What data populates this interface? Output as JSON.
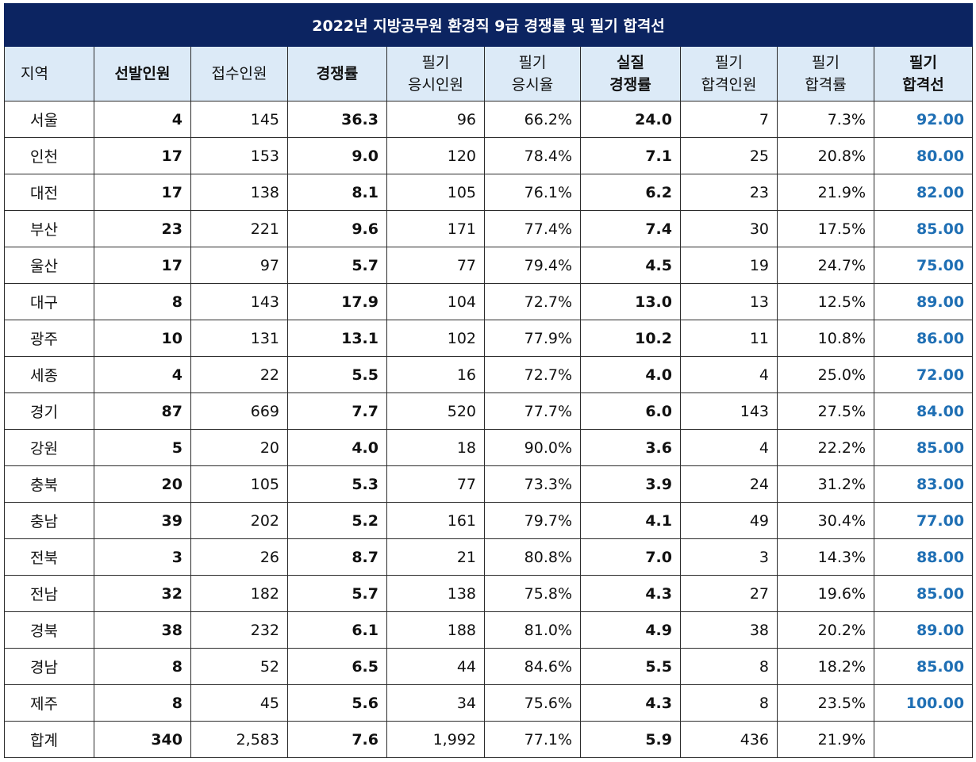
{
  "title": "2022년 지방공무원 환경직 9급 경쟁률 및 필기 합격선",
  "columns": [
    {
      "line1": "지역",
      "line2": "",
      "bold": false
    },
    {
      "line1": "선발인원",
      "line2": "",
      "bold": true
    },
    {
      "line1": "접수인원",
      "line2": "",
      "bold": false
    },
    {
      "line1": "경쟁률",
      "line2": "",
      "bold": true
    },
    {
      "line1": "필기",
      "line2": "응시인원",
      "bold": false
    },
    {
      "line1": "필기",
      "line2": "응시율",
      "bold": false
    },
    {
      "line1": "실질",
      "line2": "경쟁률",
      "bold": true
    },
    {
      "line1": "필기",
      "line2": "합격인원",
      "bold": false
    },
    {
      "line1": "필기",
      "line2": "합격률",
      "bold": false
    },
    {
      "line1": "필기",
      "line2": "합격선",
      "bold": true
    }
  ],
  "rows": [
    {
      "region": "서울",
      "selected": "4",
      "applied": "145",
      "ratio": "36.3",
      "exam_takers": "96",
      "exam_rate": "66.2%",
      "real_ratio": "24.0",
      "passed": "7",
      "pass_rate": "7.3%",
      "cutoff": "92.00"
    },
    {
      "region": "인천",
      "selected": "17",
      "applied": "153",
      "ratio": "9.0",
      "exam_takers": "120",
      "exam_rate": "78.4%",
      "real_ratio": "7.1",
      "passed": "25",
      "pass_rate": "20.8%",
      "cutoff": "80.00"
    },
    {
      "region": "대전",
      "selected": "17",
      "applied": "138",
      "ratio": "8.1",
      "exam_takers": "105",
      "exam_rate": "76.1%",
      "real_ratio": "6.2",
      "passed": "23",
      "pass_rate": "21.9%",
      "cutoff": "82.00"
    },
    {
      "region": "부산",
      "selected": "23",
      "applied": "221",
      "ratio": "9.6",
      "exam_takers": "171",
      "exam_rate": "77.4%",
      "real_ratio": "7.4",
      "passed": "30",
      "pass_rate": "17.5%",
      "cutoff": "85.00"
    },
    {
      "region": "울산",
      "selected": "17",
      "applied": "97",
      "ratio": "5.7",
      "exam_takers": "77",
      "exam_rate": "79.4%",
      "real_ratio": "4.5",
      "passed": "19",
      "pass_rate": "24.7%",
      "cutoff": "75.00"
    },
    {
      "region": "대구",
      "selected": "8",
      "applied": "143",
      "ratio": "17.9",
      "exam_takers": "104",
      "exam_rate": "72.7%",
      "real_ratio": "13.0",
      "passed": "13",
      "pass_rate": "12.5%",
      "cutoff": "89.00"
    },
    {
      "region": "광주",
      "selected": "10",
      "applied": "131",
      "ratio": "13.1",
      "exam_takers": "102",
      "exam_rate": "77.9%",
      "real_ratio": "10.2",
      "passed": "11",
      "pass_rate": "10.8%",
      "cutoff": "86.00"
    },
    {
      "region": "세종",
      "selected": "4",
      "applied": "22",
      "ratio": "5.5",
      "exam_takers": "16",
      "exam_rate": "72.7%",
      "real_ratio": "4.0",
      "passed": "4",
      "pass_rate": "25.0%",
      "cutoff": "72.00"
    },
    {
      "region": "경기",
      "selected": "87",
      "applied": "669",
      "ratio": "7.7",
      "exam_takers": "520",
      "exam_rate": "77.7%",
      "real_ratio": "6.0",
      "passed": "143",
      "pass_rate": "27.5%",
      "cutoff": "84.00"
    },
    {
      "region": "강원",
      "selected": "5",
      "applied": "20",
      "ratio": "4.0",
      "exam_takers": "18",
      "exam_rate": "90.0%",
      "real_ratio": "3.6",
      "passed": "4",
      "pass_rate": "22.2%",
      "cutoff": "85.00"
    },
    {
      "region": "충북",
      "selected": "20",
      "applied": "105",
      "ratio": "5.3",
      "exam_takers": "77",
      "exam_rate": "73.3%",
      "real_ratio": "3.9",
      "passed": "24",
      "pass_rate": "31.2%",
      "cutoff": "83.00"
    },
    {
      "region": "충남",
      "selected": "39",
      "applied": "202",
      "ratio": "5.2",
      "exam_takers": "161",
      "exam_rate": "79.7%",
      "real_ratio": "4.1",
      "passed": "49",
      "pass_rate": "30.4%",
      "cutoff": "77.00"
    },
    {
      "region": "전북",
      "selected": "3",
      "applied": "26",
      "ratio": "8.7",
      "exam_takers": "21",
      "exam_rate": "80.8%",
      "real_ratio": "7.0",
      "passed": "3",
      "pass_rate": "14.3%",
      "cutoff": "88.00"
    },
    {
      "region": "전남",
      "selected": "32",
      "applied": "182",
      "ratio": "5.7",
      "exam_takers": "138",
      "exam_rate": "75.8%",
      "real_ratio": "4.3",
      "passed": "27",
      "pass_rate": "19.6%",
      "cutoff": "85.00"
    },
    {
      "region": "경북",
      "selected": "38",
      "applied": "232",
      "ratio": "6.1",
      "exam_takers": "188",
      "exam_rate": "81.0%",
      "real_ratio": "4.9",
      "passed": "38",
      "pass_rate": "20.2%",
      "cutoff": "89.00"
    },
    {
      "region": "경남",
      "selected": "8",
      "applied": "52",
      "ratio": "6.5",
      "exam_takers": "44",
      "exam_rate": "84.6%",
      "real_ratio": "5.5",
      "passed": "8",
      "pass_rate": "18.2%",
      "cutoff": "85.00"
    },
    {
      "region": "제주",
      "selected": "8",
      "applied": "45",
      "ratio": "5.6",
      "exam_takers": "34",
      "exam_rate": "75.6%",
      "real_ratio": "4.3",
      "passed": "8",
      "pass_rate": "23.5%",
      "cutoff": "100.00"
    },
    {
      "region": "합계",
      "selected": "340",
      "applied": "2,583",
      "ratio": "7.6",
      "exam_takers": "1,992",
      "exam_rate": "77.1%",
      "real_ratio": "5.9",
      "passed": "436",
      "pass_rate": "21.9%",
      "cutoff": ""
    }
  ],
  "colors": {
    "title_bg": "#0c2461",
    "header_bg": "#dceaf7",
    "cutoff_text": "#1f6fb4"
  }
}
